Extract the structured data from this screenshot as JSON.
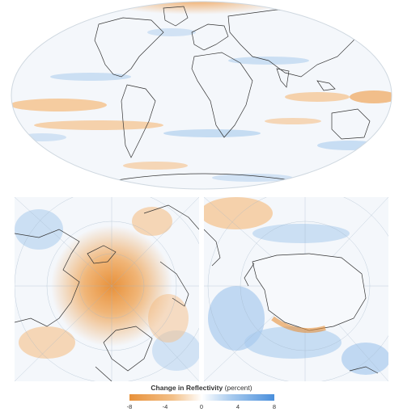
{
  "panels": [
    {
      "name": "global-mollweide-map"
    },
    {
      "name": "arctic-polar-map"
    },
    {
      "name": "antarctic-polar-map"
    }
  ],
  "legend": {
    "title": "Change in Reflectivity",
    "unit": "(percent)",
    "min": -8,
    "max": 8,
    "ticks": [
      "-8",
      "-4",
      "0",
      "4",
      "8"
    ],
    "colors": {
      "negative": "#e8913a",
      "zero": "#ffffff",
      "positive": "#4a8fdc"
    }
  }
}
